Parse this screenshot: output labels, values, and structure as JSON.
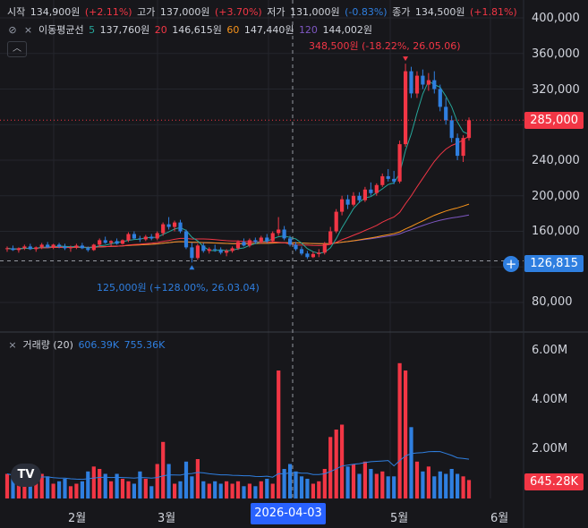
{
  "header": {
    "open_label": "시작",
    "open_value": "134,900원",
    "open_change": "(+2.11%)",
    "high_label": "고가",
    "high_value": "137,000원",
    "high_change": "(+3.70%)",
    "low_label": "저가",
    "low_value": "131,000원",
    "low_change": "(-0.83%)",
    "close_label": "종가",
    "close_value": "134,500원",
    "close_change": "(+1.81%)"
  },
  "ma_legend": {
    "title": "이동평균선",
    "ma5_period": "5",
    "ma5_value": "137,760원",
    "ma20_period": "20",
    "ma20_value": "146,615원",
    "ma60_period": "60",
    "ma60_value": "147,440원",
    "ma120_period": "120",
    "ma120_value": "144,002원"
  },
  "volume_legend": {
    "title": "거래량 (20)",
    "v1": "606.39K",
    "v2": "755.36K"
  },
  "annotations": {
    "high": "348,500원 (-18.22%, 26.05.06)",
    "low": "125,000원 (+128.00%, 26.03.04)"
  },
  "price_axis": [
    "400,000",
    "360,000",
    "320,000",
    "285,000",
    "240,000",
    "200,000",
    "160,000",
    "126,815",
    "80,000"
  ],
  "current_price_label": "285,000",
  "crosshair_price_label": "126,815",
  "volume_axis": [
    "6.00M",
    "4.00M",
    "2.00M"
  ],
  "volume_current_label": "645.28K",
  "time_axis": [
    "2월",
    "3월",
    "5월",
    "6월"
  ],
  "crosshair_date": "2026-04-03",
  "collapse_icon": "chevron-up-icon",
  "colors": {
    "up": "#f23645",
    "down": "#2f7fe0",
    "ma5": "#26a69a",
    "ma20": "#f23645",
    "ma60": "#f7931a",
    "ma120": "#7e57c2",
    "crosshair_pill": "#2962ff"
  },
  "chart_data": {
    "type": "candlestick",
    "unit": "원",
    "ylim": [
      60000,
      420000
    ],
    "volume_ylim": [
      0,
      6500000
    ],
    "candles": [
      [
        140000,
        143000,
        137000,
        141000,
        1000000.0
      ],
      [
        141000,
        144000,
        138000,
        139000,
        900000.0
      ],
      [
        139000,
        142000,
        136000,
        141000,
        800000.0
      ],
      [
        141000,
        145000,
        139000,
        143000,
        700000.0
      ],
      [
        143000,
        146000,
        139000,
        140000,
        900000.0
      ],
      [
        140000,
        143000,
        137000,
        142000,
        800000.0
      ],
      [
        142000,
        147000,
        140000,
        145000,
        1000000.0
      ],
      [
        145000,
        148000,
        141000,
        142000,
        900000.0
      ],
      [
        142000,
        146000,
        140000,
        145000,
        600000.0
      ],
      [
        145000,
        147000,
        141000,
        143000,
        700000.0
      ],
      [
        143000,
        146000,
        139000,
        141000,
        800000.0
      ],
      [
        141000,
        144000,
        137000,
        142000,
        500000.0
      ],
      [
        142000,
        146000,
        140000,
        144000,
        600000.0
      ],
      [
        144000,
        147000,
        140000,
        141000,
        700000.0
      ],
      [
        141000,
        143000,
        137000,
        139000,
        1100000.0
      ],
      [
        139000,
        146000,
        138000,
        145000,
        1300000.0
      ],
      [
        145000,
        152000,
        143000,
        150000,
        1200000.0
      ],
      [
        150000,
        154000,
        146000,
        147000,
        1000000.0
      ],
      [
        147000,
        150000,
        143000,
        149000,
        700000.0
      ],
      [
        149000,
        152000,
        145000,
        146000,
        1000000.0
      ],
      [
        146000,
        151000,
        145000,
        150000,
        800000.0
      ],
      [
        150000,
        159000,
        148000,
        157000,
        700000.0
      ],
      [
        157000,
        160000,
        151000,
        152000,
        600000.0
      ],
      [
        152000,
        155000,
        148000,
        151000,
        1100000.0
      ],
      [
        151000,
        156000,
        149000,
        154000,
        800000.0
      ],
      [
        154000,
        157000,
        150000,
        152000,
        500000.0
      ],
      [
        152000,
        160000,
        150000,
        158000,
        1400000.0
      ],
      [
        158000,
        170000,
        155000,
        168000,
        2300000.0
      ],
      [
        168000,
        176000,
        162000,
        165000,
        1400000.0
      ],
      [
        165000,
        172000,
        160000,
        170000,
        600000.0
      ],
      [
        170000,
        173000,
        158000,
        160000,
        700000.0
      ],
      [
        160000,
        162000,
        140000,
        142000,
        1500000.0
      ],
      [
        142000,
        147000,
        125000,
        130000,
        900000.0
      ],
      [
        130000,
        146000,
        128000,
        144000,
        1600000.0
      ],
      [
        144000,
        147000,
        136000,
        138000,
        700000.0
      ],
      [
        138000,
        142000,
        135000,
        140000,
        600000.0
      ],
      [
        140000,
        145000,
        137000,
        139000,
        700000.0
      ],
      [
        139000,
        142000,
        134000,
        136000,
        600000.0
      ],
      [
        136000,
        140000,
        132000,
        138000,
        700000.0
      ],
      [
        138000,
        143000,
        136000,
        141000,
        600000.0
      ],
      [
        141000,
        150000,
        139000,
        148000,
        700000.0
      ],
      [
        148000,
        152000,
        143000,
        144000,
        500000.0
      ],
      [
        144000,
        152000,
        142000,
        150000,
        600000.0
      ],
      [
        150000,
        153000,
        146000,
        148000,
        500000.0
      ],
      [
        148000,
        155000,
        146000,
        153000,
        700000.0
      ],
      [
        153000,
        157000,
        147000,
        149000,
        800000.0
      ],
      [
        149000,
        160000,
        147000,
        158000,
        600000.0
      ],
      [
        158000,
        176000,
        155000,
        162000,
        5200000.0
      ],
      [
        162000,
        166000,
        150000,
        152000,
        1200000.0
      ],
      [
        152000,
        155000,
        143000,
        145000,
        1400000.0
      ],
      [
        145000,
        148000,
        138000,
        140000,
        1100000.0
      ],
      [
        140000,
        143000,
        133000,
        135000,
        900000.0
      ],
      [
        135000,
        138000,
        129000,
        131000,
        800000.0
      ],
      [
        131000,
        137000,
        130000,
        134500,
        600000.0
      ],
      [
        134500,
        140000,
        131000,
        136000,
        700000.0
      ],
      [
        136000,
        148000,
        134000,
        146000,
        1200000.0
      ],
      [
        146000,
        165000,
        145000,
        160000,
        2500000.0
      ],
      [
        160000,
        185000,
        158000,
        182000,
        2800000.0
      ],
      [
        182000,
        200000,
        178000,
        196000,
        3000000.0
      ],
      [
        196000,
        201000,
        185000,
        190000,
        1300000.0
      ],
      [
        190000,
        204000,
        188000,
        200000,
        1400000.0
      ],
      [
        200000,
        204000,
        192000,
        195000,
        1000000.0
      ],
      [
        195000,
        210000,
        193000,
        207000,
        1500000.0
      ],
      [
        207000,
        215000,
        200000,
        203000,
        1200000.0
      ],
      [
        203000,
        214000,
        200000,
        212000,
        1000000.0
      ],
      [
        212000,
        225000,
        210000,
        222000,
        1100000.0
      ],
      [
        222000,
        230000,
        216000,
        219000,
        900000.0
      ],
      [
        219000,
        228000,
        213000,
        216000,
        900000.0
      ],
      [
        216000,
        262000,
        214000,
        258000,
        5500000.0
      ],
      [
        258000,
        348500,
        255000,
        340000,
        5200000.0
      ],
      [
        340000,
        345000,
        310000,
        315000,
        2900000.0
      ],
      [
        315000,
        340000,
        310000,
        335000,
        1500000.0
      ],
      [
        335000,
        342000,
        320000,
        325000,
        1100000.0
      ],
      [
        325000,
        338000,
        318000,
        330000,
        1300000.0
      ],
      [
        330000,
        340000,
        315000,
        320000,
        900000.0
      ],
      [
        320000,
        325000,
        295000,
        300000,
        1100000.0
      ],
      [
        300000,
        310000,
        280000,
        285000,
        1000000.0
      ],
      [
        285000,
        290000,
        260000,
        265000,
        1200000.0
      ],
      [
        265000,
        270000,
        240000,
        245000,
        1000000.0
      ],
      [
        245000,
        268000,
        238000,
        265000,
        900000.0
      ],
      [
        265000,
        288000,
        262000,
        285000,
        750000.0
      ]
    ]
  }
}
